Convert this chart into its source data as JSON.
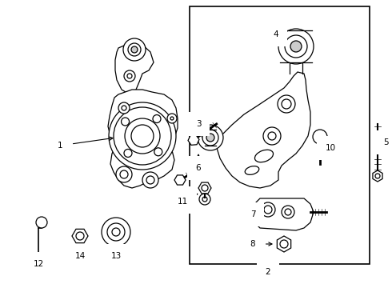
{
  "bg_color": "#ffffff",
  "line_color": "#000000",
  "lw": 0.9,
  "fig_w": 4.9,
  "fig_h": 3.6,
  "dpi": 100
}
